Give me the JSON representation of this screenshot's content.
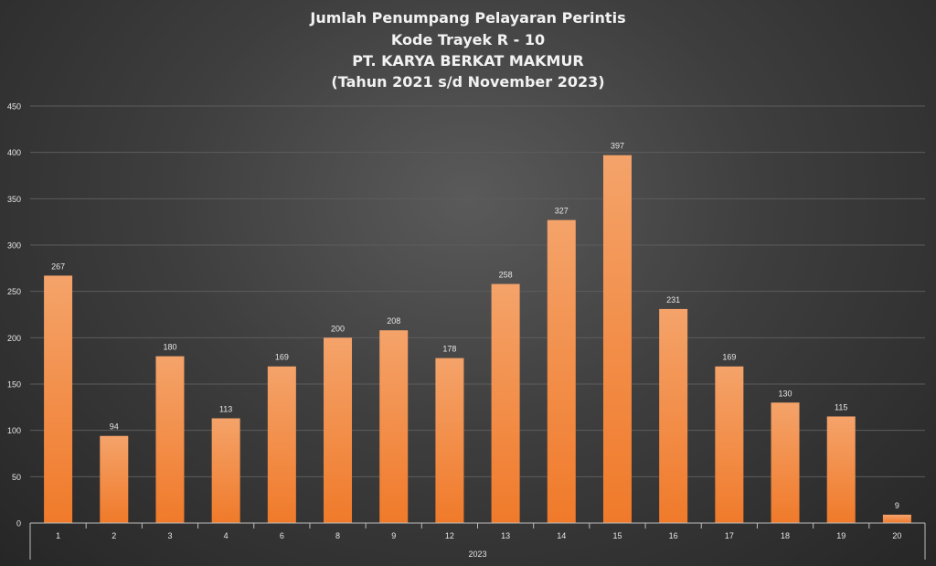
{
  "chart_data": {
    "type": "bar",
    "title": [
      "Jumlah Penumpang Pelayaran Perintis",
      "Kode Trayek R - 10",
      "PT. KARYA BERKAT MAKMUR",
      "(Tahun 2021 s/d November 2023)"
    ],
    "categories": [
      "1",
      "2",
      "3",
      "4",
      "6",
      "8",
      "9",
      "12",
      "13",
      "14",
      "15",
      "16",
      "17",
      "18",
      "19",
      "20"
    ],
    "values": [
      267,
      94,
      180,
      113,
      169,
      200,
      208,
      178,
      258,
      327,
      397,
      231,
      169,
      130,
      115,
      9
    ],
    "group_label": "2023",
    "ylim": [
      0,
      450
    ],
    "yticks": [
      0,
      50,
      100,
      150,
      200,
      250,
      300,
      350,
      400,
      450
    ],
    "grid": true,
    "data_labels": true,
    "legend": "none",
    "colors": {
      "bar": "#f07a2a",
      "bar_light": "#f4a36a",
      "text": "#e6e6e6",
      "grid": "#5c5c5c"
    }
  }
}
